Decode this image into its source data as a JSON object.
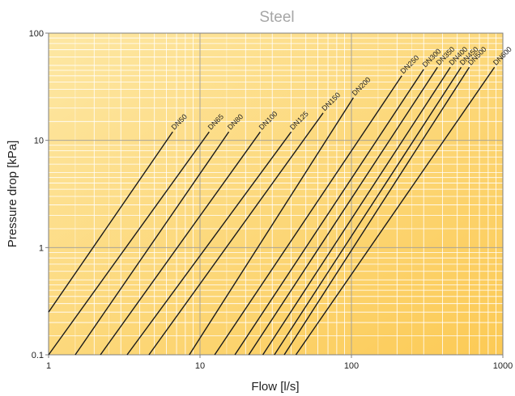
{
  "chart_data": {
    "type": "line",
    "title": "Steel",
    "xlabel": "Flow [l/s]",
    "ylabel": "Pressure drop [kPa]",
    "x_scale": "log",
    "y_scale": "log",
    "xlim": [
      1,
      1000
    ],
    "ylim": [
      0.1,
      100
    ],
    "x_ticks": [
      "1",
      "10",
      "100",
      "1000"
    ],
    "y_ticks": [
      "0.1",
      "1",
      "10",
      "100"
    ],
    "grid": true,
    "background_color": "#fcd36f",
    "line_color": "#1a1a1a",
    "grid_color": "#ffffff",
    "series": [
      {
        "name": "DN50",
        "x": [
          1.0,
          6.6
        ],
        "y": [
          0.25,
          12.0
        ]
      },
      {
        "name": "DN65",
        "x": [
          1.0,
          11.5
        ],
        "y": [
          0.1,
          12.0
        ]
      },
      {
        "name": "DN80",
        "x": [
          1.5,
          15.5
        ],
        "y": [
          0.1,
          12.0
        ]
      },
      {
        "name": "DN100",
        "x": [
          2.2,
          25.0
        ],
        "y": [
          0.1,
          12.0
        ]
      },
      {
        "name": "DN125",
        "x": [
          3.3,
          40.0
        ],
        "y": [
          0.1,
          12.0
        ]
      },
      {
        "name": "DN150",
        "x": [
          4.6,
          65.0
        ],
        "y": [
          0.1,
          18.0
        ]
      },
      {
        "name": "DN200",
        "x": [
          8.5,
          103.0
        ],
        "y": [
          0.1,
          25.0
        ]
      },
      {
        "name": "DN250",
        "x": [
          12.5,
          215.0
        ],
        "y": [
          0.1,
          40.0
        ]
      },
      {
        "name": "DN300",
        "x": [
          17.0,
          300.0
        ],
        "y": [
          0.1,
          46.0
        ]
      },
      {
        "name": "DN350",
        "x": [
          21.0,
          370.0
        ],
        "y": [
          0.1,
          48.0
        ]
      },
      {
        "name": "DN400",
        "x": [
          26.0,
          450.0
        ],
        "y": [
          0.1,
          48.0
        ]
      },
      {
        "name": "DN450",
        "x": [
          31.0,
          530.0
        ],
        "y": [
          0.1,
          48.0
        ]
      },
      {
        "name": "DN500",
        "x": [
          36.0,
          600.0
        ],
        "y": [
          0.1,
          48.0
        ]
      },
      {
        "name": "DN600",
        "x": [
          43.0,
          880.0
        ],
        "y": [
          0.1,
          48.0
        ]
      }
    ]
  }
}
